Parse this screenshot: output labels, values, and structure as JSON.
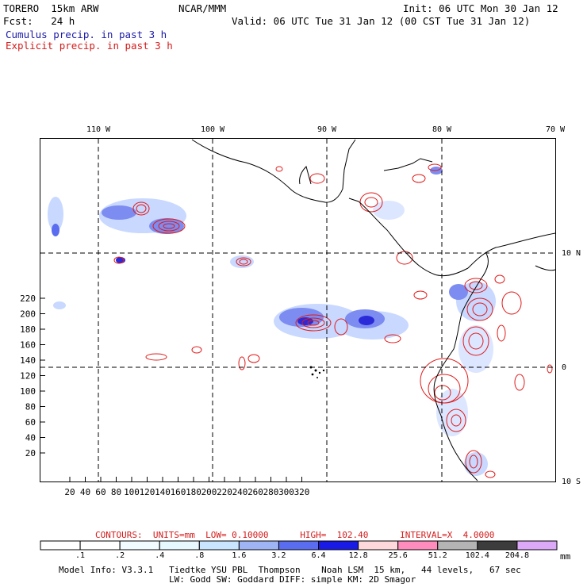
{
  "header": {
    "model": "TORERO  15km ARW",
    "org": "NCAR/MMM",
    "init": "Init: 06 UTC Mon 30 Jan 12",
    "fcst": "Fcst:   24 h",
    "valid": "Valid: 06 UTC Tue 31 Jan 12 (00 CST Tue 31 Jan 12)",
    "legend_cumulus": "Cumulus precip. in past 3 h",
    "legend_explicit": "Explicit precip. in past 3 h"
  },
  "map": {
    "lon_labels": [
      "110 W",
      "100 W",
      "90 W",
      "80 W",
      "70 W"
    ],
    "lat_labels": [
      "10 N",
      "0",
      "10 S"
    ],
    "x_ticks": [
      "20",
      "40",
      "60",
      "80",
      "100",
      "120",
      "140",
      "160",
      "180",
      "200",
      "220",
      "240",
      "260",
      "280",
      "300",
      "320"
    ],
    "y_ticks": [
      "20",
      "40",
      "60",
      "80",
      "100",
      "120",
      "140",
      "160",
      "180",
      "200",
      "220"
    ],
    "colors": {
      "explicit": "#e01b1b",
      "cumulus_light": "#c8d8ff",
      "cumulus_mid": "#7c8cf0",
      "cumulus_dark": "#2a2ad8",
      "coast": "#000000"
    }
  },
  "contours": {
    "label": "CONTOURS:  UNITS=mm  LOW= 0.10000      HIGH=  102.40      INTERVAL=X  4.0000"
  },
  "colorbar": {
    "labels": [
      ".1",
      ".2",
      ".4",
      ".8",
      "1.6",
      "3.2",
      "6.4",
      "12.8",
      "25.6",
      "51.2",
      "102.4",
      "204.8"
    ],
    "unit": "mm",
    "colors": [
      "#ffffff",
      "#ffffff",
      "#f0fcff",
      "#e8f8ff",
      "#c8e4ff",
      "#9fb4f5",
      "#5a6cf0",
      "#1a1ae6",
      "#ffd8dc",
      "#ff8cbc",
      "#b4b4b4",
      "#3c3c3c",
      "#dca8f8"
    ]
  },
  "footer": {
    "line1": "Model Info: V3.3.1   Tiedtke YSU PBL  Thompson    Noah LSM  15 km,   44 levels,   67 sec",
    "line2": "LW: Godd SW: Goddard DIFF: simple KM: 2D Smagor"
  }
}
